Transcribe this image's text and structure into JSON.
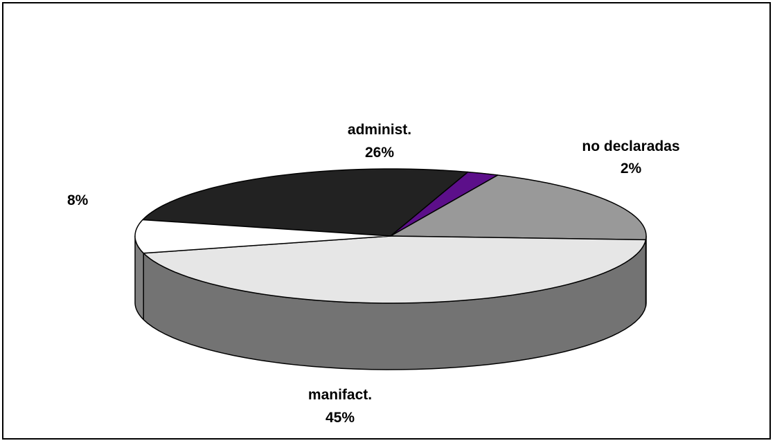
{
  "chart_data": {
    "type": "pie",
    "style": "3d",
    "slices": [
      {
        "label": "administ.",
        "value": 26,
        "pct_text": "26%",
        "color": "#222222"
      },
      {
        "label": "no declaradas",
        "value": 2,
        "pct_text": "2%",
        "color": "#5c0f8a"
      },
      {
        "label": "",
        "value": 19,
        "pct_text": "",
        "color": "#999999"
      },
      {
        "label": "manifact.",
        "value": 45,
        "pct_text": "45%",
        "color": "#e6e6e6"
      },
      {
        "label": "",
        "value": 8,
        "pct_text": "8%",
        "color": "#ffffff"
      }
    ]
  }
}
